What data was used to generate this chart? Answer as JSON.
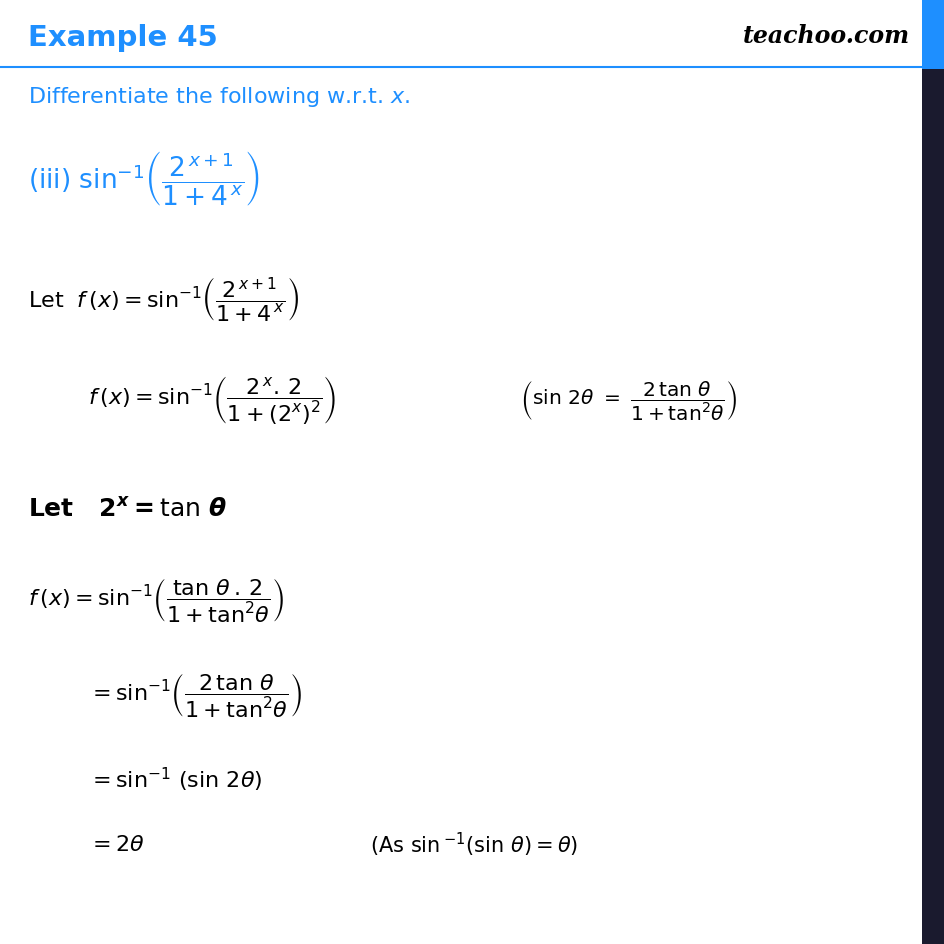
{
  "title": "Example 45",
  "teachoo": "teachoo.com",
  "subtitle_part1": "Differentiate the following w.r.t. ",
  "subtitle_x": "x",
  "subtitle_dot": ".",
  "blue_color": "#1E8FFF",
  "black": "#000000",
  "white": "#FFFFFF",
  "sidebar_blue": "#1E8FFF",
  "sidebar_dark": "#1a1a2e",
  "background": "#FFFFFF",
  "line_color": "#1E8FFF"
}
